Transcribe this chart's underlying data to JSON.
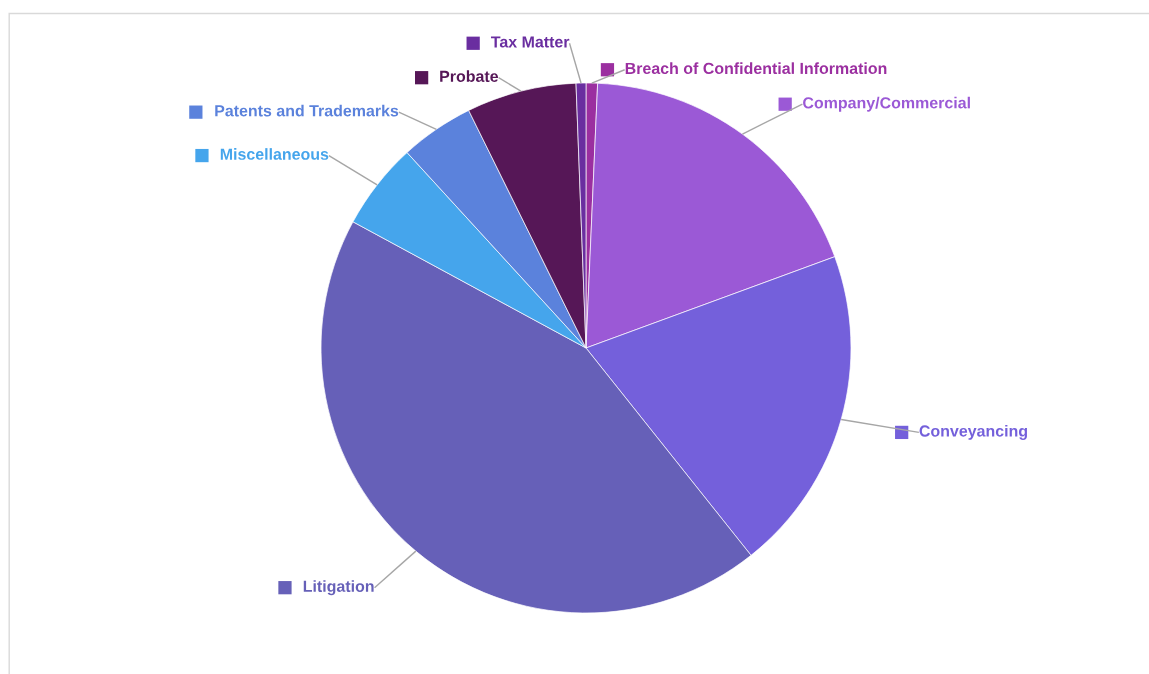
{
  "chart_data": {
    "type": "pie",
    "categories": [
      "Breach of Confidential Information",
      "Company/Commercial",
      "Conveyancing",
      "Litigation",
      "Miscellaneous",
      "Patents and Trademarks",
      "Probate",
      "Tax Matter"
    ],
    "values": [
      0.7,
      18.7,
      19.9,
      43.6,
      5.3,
      4.5,
      6.7,
      0.6
    ],
    "legend": true,
    "colors": [
      "#9b2fa0",
      "#9b59d6",
      "#7460db",
      "#6660b8",
      "#45a5ec",
      "#5b82dc",
      "#561757",
      "#6a2ea0"
    ]
  }
}
